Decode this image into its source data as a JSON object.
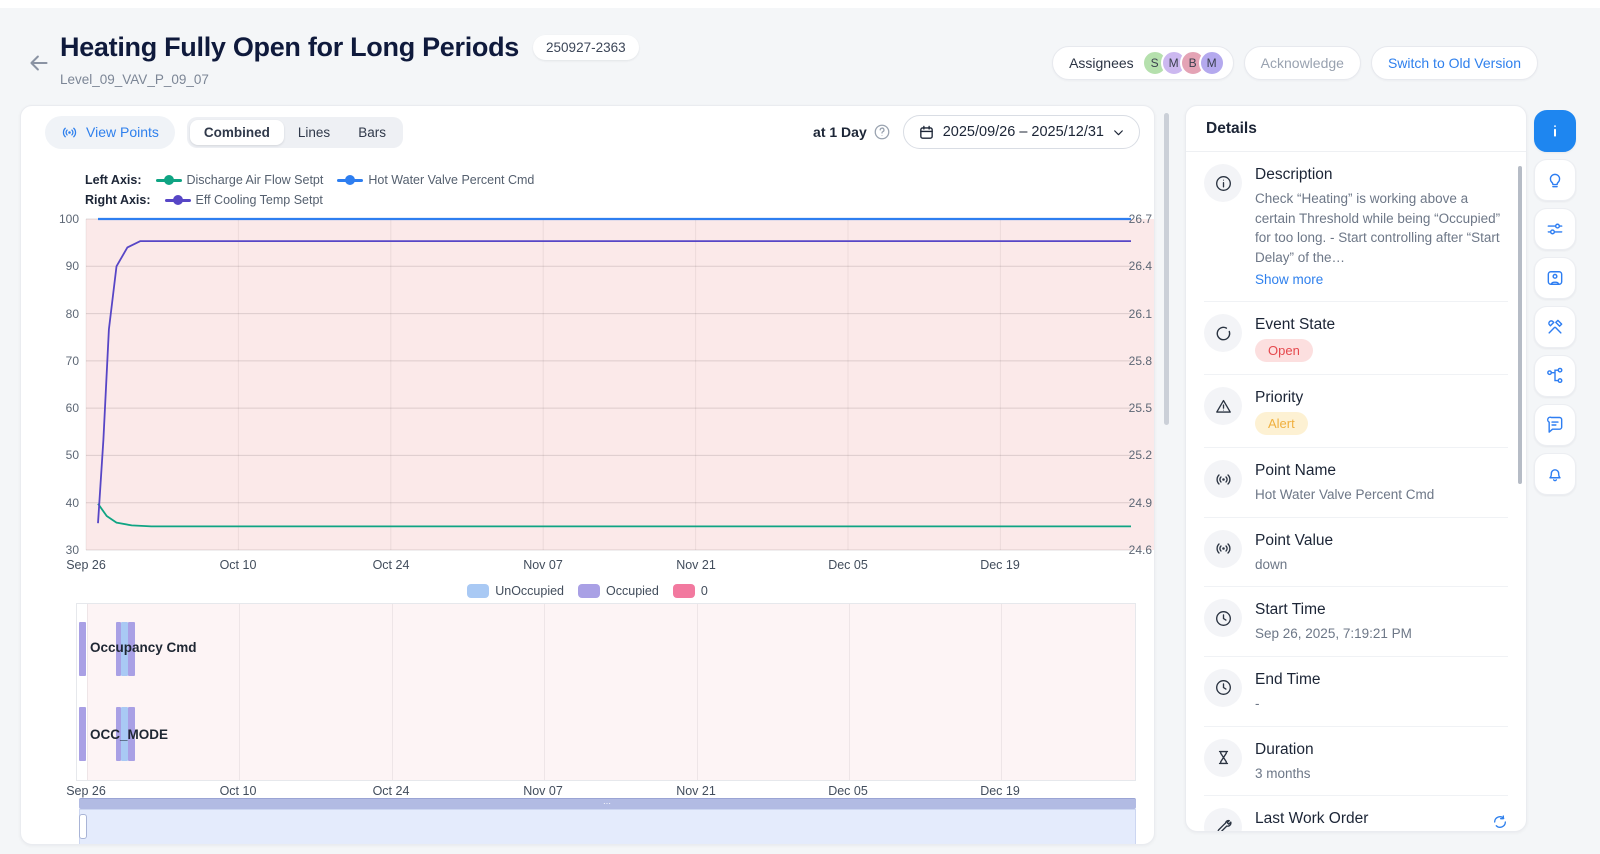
{
  "header": {
    "title": "Heating Fully Open for Long Periods",
    "id_badge": "250927-2363",
    "subtitle": "Level_09_VAV_P_09_07",
    "assignees": {
      "label": "Assignees",
      "avatars": [
        {
          "initials": "S",
          "bg": "#b5e0ad"
        },
        {
          "initials": "M",
          "bg": "#ccb8f0"
        },
        {
          "initials": "B",
          "bg": "#e4a3b5"
        },
        {
          "initials": "M",
          "bg": "#b4a9ee"
        }
      ]
    },
    "acknowledge_button": "Acknowledge",
    "switch_button": "Switch to Old Version"
  },
  "toolbar": {
    "view_points_button": "View Points",
    "chart_tabs": [
      {
        "label": "Combined",
        "active": true
      },
      {
        "label": "Lines",
        "active": false
      },
      {
        "label": "Bars",
        "active": false
      }
    ],
    "interval_label": "at 1 Day",
    "date_range": "2025/09/26 – 2025/12/31"
  },
  "chart_data": [
    {
      "type": "line",
      "legend": {
        "left_label": "Left Axis:",
        "right_label": "Right Axis:"
      },
      "x_ticks": [
        "Sep 26",
        "Oct 10",
        "Oct 24",
        "Nov 07",
        "Nov 21",
        "Dec 05",
        "Dec 19"
      ],
      "x_tick_days": [
        0,
        14,
        28,
        42,
        56,
        70,
        84
      ],
      "x_span_days": 96,
      "left_axis": {
        "min": 30,
        "max": 100,
        "ticks": [
          100,
          90,
          80,
          70,
          60,
          50,
          40,
          30
        ]
      },
      "right_axis": {
        "min": 24.6,
        "max": 26.7,
        "ticks": [
          26.7,
          26.4,
          26.1,
          25.8,
          25.5,
          25.2,
          24.9,
          24.6
        ]
      },
      "series": [
        {
          "name": "Discharge Air Flow Setpt",
          "axis": "left",
          "color": "#0fa483",
          "width": 1.8,
          "points": [
            [
              1.1,
              39.8
            ],
            [
              1.9,
              37.2
            ],
            [
              2.8,
              35.8
            ],
            [
              4.2,
              35.2
            ],
            [
              6,
              35.0
            ],
            [
              96,
              35.0
            ]
          ]
        },
        {
          "name": "Hot Water Valve Percent Cmd",
          "axis": "left",
          "color": "#2e7ef0",
          "width": 2.2,
          "points": [
            [
              1.1,
              100
            ],
            [
              96,
              100
            ]
          ]
        },
        {
          "name": "Eff Cooling Temp Setpt",
          "axis": "right",
          "color": "#5746c6",
          "width": 1.8,
          "points": [
            [
              1.1,
              24.77
            ],
            [
              1.6,
              25.3
            ],
            [
              2.1,
              26.0
            ],
            [
              2.8,
              26.4
            ],
            [
              3.8,
              26.52
            ],
            [
              5,
              26.56
            ],
            [
              96,
              26.56
            ]
          ]
        }
      ],
      "alarm_region_color": "#fbe9e9"
    },
    {
      "type": "state-timeline",
      "legend": [
        {
          "label": "UnOccupied",
          "color": "#a9c9f4"
        },
        {
          "label": "Occupied",
          "color": "#a9a0e5"
        },
        {
          "label": "0",
          "color": "#f2799f"
        }
      ],
      "rows": [
        {
          "label": "Occupancy Cmd"
        },
        {
          "label": "OCC_MODE"
        }
      ],
      "stripes": [
        {
          "x": 2,
          "w": 7,
          "state": "Occupied"
        },
        {
          "x": 39,
          "w": 5,
          "state": "Occupied"
        },
        {
          "x": 44,
          "w": 7,
          "state": "UnOccupied"
        },
        {
          "x": 51,
          "w": 7,
          "state": "Occupied"
        }
      ],
      "background": "#fdf4f5"
    }
  ],
  "details": {
    "title": "Details",
    "items": [
      {
        "label": "Description",
        "value": "Check “Heating” is working above a certain Threshold while being “Occupied” for too long. - Start controlling after “Start Delay” of the…",
        "link": "Show more"
      },
      {
        "label": "Event State",
        "badge": "Open"
      },
      {
        "label": "Priority",
        "badge": "Alert"
      },
      {
        "label": "Point Name",
        "value": "Hot Water Valve Percent Cmd"
      },
      {
        "label": "Point Value",
        "value": "down"
      },
      {
        "label": "Start Time",
        "value": "Sep 26, 2025, 7:19:21 PM"
      },
      {
        "label": "End Time",
        "value": "-"
      },
      {
        "label": "Duration",
        "value": "3 months"
      },
      {
        "label": "Last Work Order",
        "value": ""
      }
    ]
  },
  "colors": {
    "accent": "#2f80ed",
    "active_rail": "#1e86f0",
    "open_badge_bg": "#fcdfdf",
    "open_badge_text": "#e5484d",
    "alert_badge_bg": "#fdf1d3",
    "alert_badge_text": "#f0b03f",
    "alarm_fill": "#fbe9e9"
  }
}
